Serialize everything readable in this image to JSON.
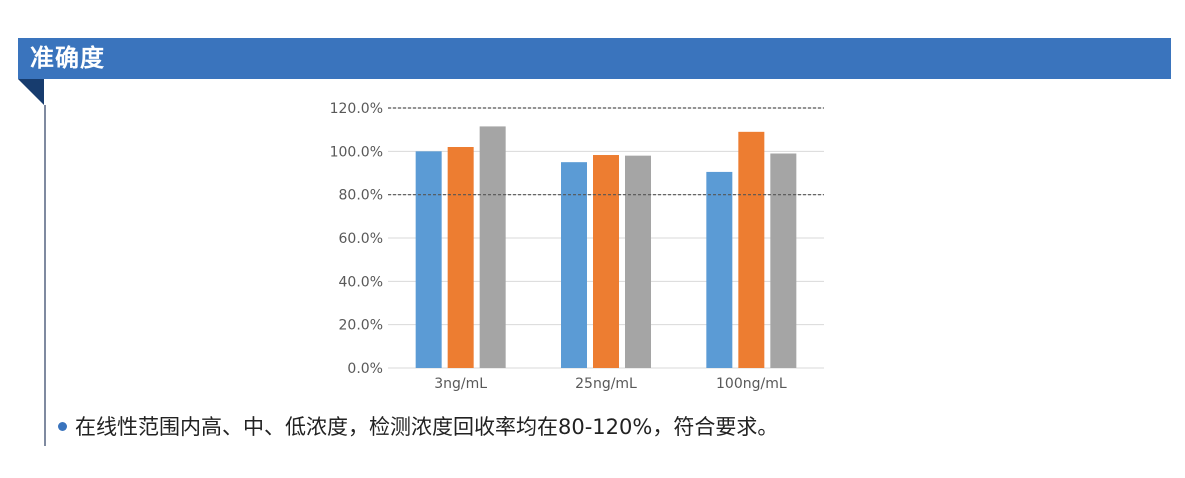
{
  "header": {
    "title": "准确度"
  },
  "chart_data": {
    "type": "bar",
    "categories": [
      "3ng/mL",
      "25ng/mL",
      "100ng/mL"
    ],
    "series": [
      {
        "color": "#5b9bd5",
        "values": [
          100.0,
          95.0,
          90.5
        ]
      },
      {
        "color": "#ed7d31",
        "values": [
          102.0,
          98.3,
          109.0
        ]
      },
      {
        "color": "#a5a5a5",
        "values": [
          111.5,
          98.0,
          99.0
        ]
      }
    ],
    "ylim": [
      0,
      120
    ],
    "yticks": [
      "0.0%",
      "20.0%",
      "40.0%",
      "60.0%",
      "80.0%",
      "100.0%",
      "120.0%"
    ],
    "reference_lines": [
      80,
      120
    ],
    "grid": true,
    "title": "",
    "xlabel": "",
    "ylabel": ""
  },
  "note": {
    "text": "在线性范围内高、中、低浓度，检测浓度回收率均在80-120%，符合要求。"
  }
}
